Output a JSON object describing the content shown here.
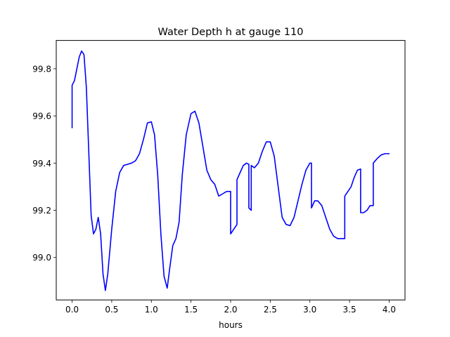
{
  "chart_data": {
    "type": "line",
    "title": "Water Depth h at gauge 110",
    "xlabel": "hours",
    "ylabel": "",
    "xlim": [
      -0.2,
      4.2
    ],
    "ylim": [
      98.82,
      99.92
    ],
    "xticks": [
      0.0,
      0.5,
      1.0,
      1.5,
      2.0,
      2.5,
      3.0,
      3.5,
      4.0
    ],
    "xtick_labels": [
      "0.0",
      "0.5",
      "1.0",
      "1.5",
      "2.0",
      "2.5",
      "3.0",
      "3.5",
      "4.0"
    ],
    "yticks": [
      99.0,
      99.2,
      99.4,
      99.6,
      99.8
    ],
    "ytick_labels": [
      "99.0",
      "99.2",
      "99.4",
      "99.6",
      "99.8"
    ],
    "grid": false,
    "series": [
      {
        "color": "#0000ff",
        "x": [
          0.0,
          0.0,
          0.03,
          0.06,
          0.09,
          0.12,
          0.15,
          0.18,
          0.21,
          0.24,
          0.27,
          0.3,
          0.33,
          0.36,
          0.39,
          0.42,
          0.45,
          0.5,
          0.55,
          0.6,
          0.65,
          0.7,
          0.75,
          0.8,
          0.85,
          0.9,
          0.95,
          1.0,
          1.04,
          1.08,
          1.12,
          1.16,
          1.2,
          1.23,
          1.27,
          1.31,
          1.35,
          1.39,
          1.44,
          1.5,
          1.55,
          1.6,
          1.65,
          1.7,
          1.75,
          1.8,
          1.85,
          1.9,
          1.95,
          2.0,
          2.0,
          2.04,
          2.08,
          2.08,
          2.12,
          2.16,
          2.2,
          2.23,
          2.23,
          2.26,
          2.26,
          2.3,
          2.35,
          2.4,
          2.45,
          2.5,
          2.55,
          2.6,
          2.65,
          2.7,
          2.75,
          2.8,
          2.85,
          2.9,
          2.95,
          3.0,
          3.02,
          3.02,
          3.06,
          3.1,
          3.15,
          3.2,
          3.25,
          3.3,
          3.35,
          3.4,
          3.44,
          3.44,
          3.48,
          3.52,
          3.56,
          3.6,
          3.64,
          3.64,
          3.68,
          3.72,
          3.76,
          3.8,
          3.8,
          3.85,
          3.9,
          3.95,
          4.0
        ],
        "y": [
          99.55,
          99.73,
          99.75,
          99.8,
          99.85,
          99.875,
          99.86,
          99.72,
          99.45,
          99.18,
          99.1,
          99.12,
          99.17,
          99.1,
          98.93,
          98.86,
          98.93,
          99.12,
          99.28,
          99.36,
          99.39,
          99.395,
          99.4,
          99.41,
          99.44,
          99.5,
          99.57,
          99.575,
          99.52,
          99.35,
          99.1,
          98.92,
          98.87,
          98.95,
          99.05,
          99.08,
          99.15,
          99.35,
          99.52,
          99.61,
          99.62,
          99.57,
          99.47,
          99.37,
          99.33,
          99.31,
          99.26,
          99.27,
          99.28,
          99.28,
          99.1,
          99.12,
          99.14,
          99.33,
          99.36,
          99.39,
          99.4,
          99.395,
          99.21,
          99.2,
          99.39,
          99.38,
          99.4,
          99.45,
          99.49,
          99.49,
          99.43,
          99.3,
          99.17,
          99.14,
          99.135,
          99.17,
          99.24,
          99.31,
          99.37,
          99.4,
          99.4,
          99.21,
          99.24,
          99.24,
          99.22,
          99.17,
          99.12,
          99.09,
          99.08,
          99.08,
          99.08,
          99.26,
          99.28,
          99.3,
          99.34,
          99.37,
          99.375,
          99.19,
          99.19,
          99.2,
          99.22,
          99.22,
          99.4,
          99.42,
          99.435,
          99.44,
          99.44
        ]
      }
    ]
  }
}
